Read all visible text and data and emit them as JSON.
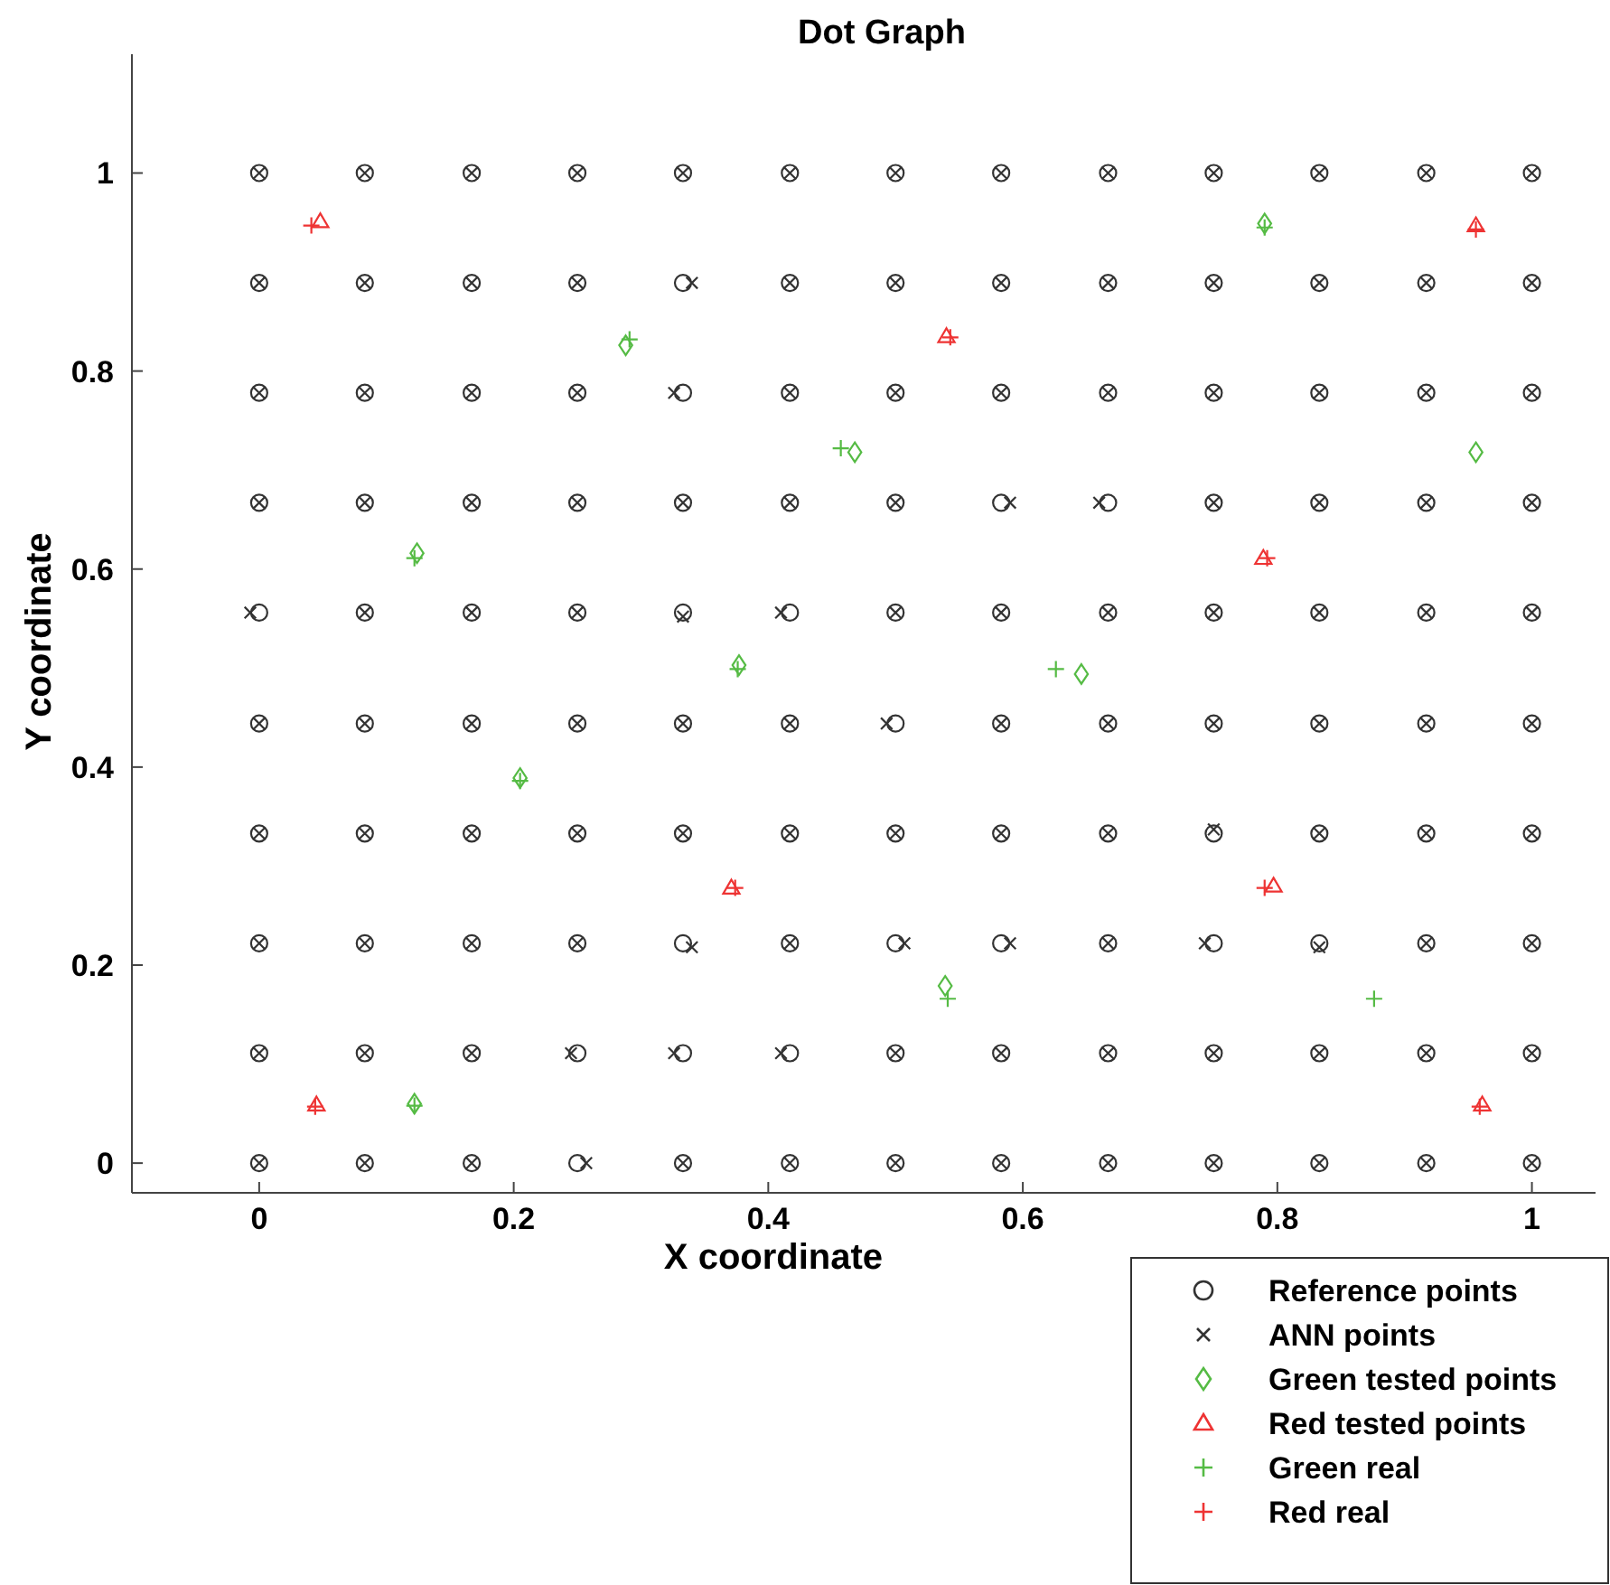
{
  "chart_data": {
    "type": "scatter",
    "title": "Dot Graph",
    "xlabel": "X coordinate",
    "ylabel": "Y coordinate",
    "xlim": [
      -0.1,
      1.05
    ],
    "ylim": [
      -0.03,
      1.12
    ],
    "xticks": [
      0,
      0.2,
      0.4,
      0.6,
      0.8,
      1
    ],
    "yticks": [
      0,
      0.2,
      0.4,
      0.6,
      0.8,
      1
    ],
    "grid": false,
    "legend": "bottom right",
    "series": [
      {
        "name": "Reference points",
        "color": "#333333",
        "marker": "circle",
        "x": [
          0,
          0.083,
          0.167,
          0.25,
          0.333,
          0.417,
          0.5,
          0.583,
          0.667,
          0.75,
          0.833,
          0.917,
          1,
          0,
          0.083,
          0.167,
          0.25,
          0.333,
          0.417,
          0.5,
          0.583,
          0.667,
          0.75,
          0.833,
          0.917,
          1,
          0,
          0.083,
          0.167,
          0.25,
          0.333,
          0.417,
          0.5,
          0.583,
          0.667,
          0.75,
          0.833,
          0.917,
          1,
          0,
          0.083,
          0.167,
          0.25,
          0.333,
          0.417,
          0.5,
          0.583,
          0.667,
          0.75,
          0.833,
          0.917,
          1,
          0,
          0.083,
          0.167,
          0.25,
          0.333,
          0.417,
          0.5,
          0.583,
          0.667,
          0.75,
          0.833,
          0.917,
          1,
          0,
          0.083,
          0.167,
          0.25,
          0.333,
          0.417,
          0.5,
          0.583,
          0.667,
          0.75,
          0.833,
          0.917,
          1,
          0,
          0.083,
          0.167,
          0.25,
          0.333,
          0.417,
          0.5,
          0.583,
          0.667,
          0.75,
          0.833,
          0.917,
          1,
          0,
          0.083,
          0.167,
          0.25,
          0.333,
          0.417,
          0.5,
          0.583,
          0.667,
          0.75,
          0.833,
          0.917,
          1,
          0,
          0.083,
          0.167,
          0.25,
          0.333,
          0.417,
          0.5,
          0.583,
          0.667,
          0.75,
          0.833,
          0.917,
          1,
          0,
          0.083,
          0.167,
          0.25,
          0.333,
          0.417,
          0.5,
          0.583,
          0.667,
          0.75,
          0.833,
          0.917,
          1
        ],
        "values": [
          0,
          0,
          0,
          0,
          0,
          0,
          0,
          0,
          0,
          0,
          0,
          0,
          0,
          0.111,
          0.111,
          0.111,
          0.111,
          0.111,
          0.111,
          0.111,
          0.111,
          0.111,
          0.111,
          0.111,
          0.111,
          0.111,
          0.222,
          0.222,
          0.222,
          0.222,
          0.222,
          0.222,
          0.222,
          0.222,
          0.222,
          0.222,
          0.222,
          0.222,
          0.222,
          0.333,
          0.333,
          0.333,
          0.333,
          0.333,
          0.333,
          0.333,
          0.333,
          0.333,
          0.333,
          0.333,
          0.333,
          0.333,
          0.444,
          0.444,
          0.444,
          0.444,
          0.444,
          0.444,
          0.444,
          0.444,
          0.444,
          0.444,
          0.444,
          0.444,
          0.444,
          0.556,
          0.556,
          0.556,
          0.556,
          0.556,
          0.556,
          0.556,
          0.556,
          0.556,
          0.556,
          0.556,
          0.556,
          0.556,
          0.667,
          0.667,
          0.667,
          0.667,
          0.667,
          0.667,
          0.667,
          0.667,
          0.667,
          0.667,
          0.667,
          0.667,
          0.667,
          0.778,
          0.778,
          0.778,
          0.778,
          0.778,
          0.778,
          0.778,
          0.778,
          0.778,
          0.778,
          0.778,
          0.778,
          0.778,
          0.889,
          0.889,
          0.889,
          0.889,
          0.889,
          0.889,
          0.889,
          0.889,
          0.889,
          0.889,
          0.889,
          0.889,
          0.889,
          1,
          1,
          1,
          1,
          1,
          1,
          1,
          1,
          1,
          1,
          1,
          1,
          1
        ]
      },
      {
        "name": "ANN points",
        "color": "#333333",
        "marker": "x",
        "x": [
          0,
          0.083,
          0.167,
          0.257,
          0.333,
          0.417,
          0.5,
          0.583,
          0.667,
          0.75,
          0.833,
          0.917,
          1,
          0,
          0.083,
          0.167,
          0.245,
          0.326,
          0.41,
          0.5,
          0.583,
          0.667,
          0.75,
          0.833,
          0.917,
          1,
          0,
          0.083,
          0.167,
          0.25,
          0.34,
          0.417,
          0.507,
          0.59,
          0.667,
          0.743,
          0.833,
          0.917,
          1,
          0,
          0.083,
          0.167,
          0.25,
          0.333,
          0.417,
          0.5,
          0.583,
          0.667,
          0.75,
          0.833,
          0.917,
          1,
          0,
          0.083,
          0.167,
          0.25,
          0.333,
          0.417,
          0.493,
          0.583,
          0.667,
          0.75,
          0.833,
          0.917,
          1,
          -0.007,
          0.083,
          0.167,
          0.25,
          0.333,
          0.41,
          0.5,
          0.583,
          0.667,
          0.75,
          0.833,
          0.917,
          1,
          0,
          0.083,
          0.167,
          0.25,
          0.333,
          0.417,
          0.5,
          0.59,
          0.66,
          0.75,
          0.833,
          0.917,
          1,
          0,
          0.083,
          0.167,
          0.25,
          0.326,
          0.417,
          0.5,
          0.583,
          0.667,
          0.75,
          0.833,
          0.917,
          1,
          0,
          0.083,
          0.167,
          0.25,
          0.34,
          0.417,
          0.5,
          0.583,
          0.667,
          0.75,
          0.833,
          0.917,
          1,
          0,
          0.083,
          0.167,
          0.25,
          0.333,
          0.417,
          0.5,
          0.583,
          0.667,
          0.75,
          0.833,
          0.917,
          1
        ],
        "values": [
          0,
          0,
          0,
          0,
          0,
          0,
          0,
          0,
          0,
          0,
          0,
          0,
          0,
          0.111,
          0.111,
          0.111,
          0.111,
          0.111,
          0.111,
          0.111,
          0.111,
          0.111,
          0.111,
          0.111,
          0.111,
          0.111,
          0.222,
          0.222,
          0.222,
          0.222,
          0.218,
          0.222,
          0.222,
          0.222,
          0.222,
          0.222,
          0.218,
          0.222,
          0.222,
          0.333,
          0.333,
          0.333,
          0.333,
          0.333,
          0.333,
          0.333,
          0.333,
          0.333,
          0.337,
          0.333,
          0.333,
          0.333,
          0.444,
          0.444,
          0.444,
          0.444,
          0.444,
          0.444,
          0.444,
          0.444,
          0.444,
          0.444,
          0.444,
          0.444,
          0.444,
          0.556,
          0.556,
          0.556,
          0.556,
          0.552,
          0.556,
          0.556,
          0.556,
          0.556,
          0.556,
          0.556,
          0.556,
          0.556,
          0.667,
          0.667,
          0.667,
          0.667,
          0.667,
          0.667,
          0.667,
          0.667,
          0.667,
          0.667,
          0.667,
          0.667,
          0.667,
          0.778,
          0.778,
          0.778,
          0.778,
          0.778,
          0.778,
          0.778,
          0.778,
          0.778,
          0.778,
          0.778,
          0.778,
          0.778,
          0.889,
          0.889,
          0.889,
          0.889,
          0.889,
          0.889,
          0.889,
          0.889,
          0.889,
          0.889,
          0.889,
          0.889,
          0.889,
          1,
          1,
          1,
          1,
          1,
          1,
          1,
          1,
          1,
          1,
          1,
          1,
          1
        ]
      },
      {
        "name": "Green tested points",
        "color": "#55bb44",
        "marker": "diamond",
        "x": [
          0.124,
          0.288,
          0.468,
          0.377,
          0.205,
          0.539,
          0.646,
          0.79,
          0.956,
          0.122
        ],
        "values": [
          0.616,
          0.826,
          0.718,
          0.503,
          0.389,
          0.179,
          0.494,
          0.949,
          0.718,
          0.06
        ]
      },
      {
        "name": "Red tested points",
        "color": "#ee3333",
        "marker": "triangle",
        "x": [
          0.048,
          0.54,
          0.789,
          0.956,
          0.371,
          0.797,
          0.045,
          0.961
        ],
        "values": [
          0.951,
          0.835,
          0.611,
          0.947,
          0.278,
          0.28,
          0.059,
          0.059
        ]
      },
      {
        "name": "Green real",
        "color": "#55bb44",
        "marker": "cross",
        "x": [
          0.122,
          0.291,
          0.457,
          0.376,
          0.205,
          0.541,
          0.626,
          0.79,
          0.876,
          0.122
        ],
        "values": [
          0.611,
          0.832,
          0.722,
          0.499,
          0.386,
          0.166,
          0.499,
          0.945,
          0.166,
          0.058
        ]
      },
      {
        "name": "Red real",
        "color": "#ee3333",
        "marker": "cross",
        "x": [
          0.041,
          0.543,
          0.792,
          0.956,
          0.374,
          0.79,
          0.044,
          0.959
        ],
        "values": [
          0.947,
          0.834,
          0.611,
          0.943,
          0.278,
          0.278,
          0.057,
          0.057
        ]
      }
    ]
  }
}
